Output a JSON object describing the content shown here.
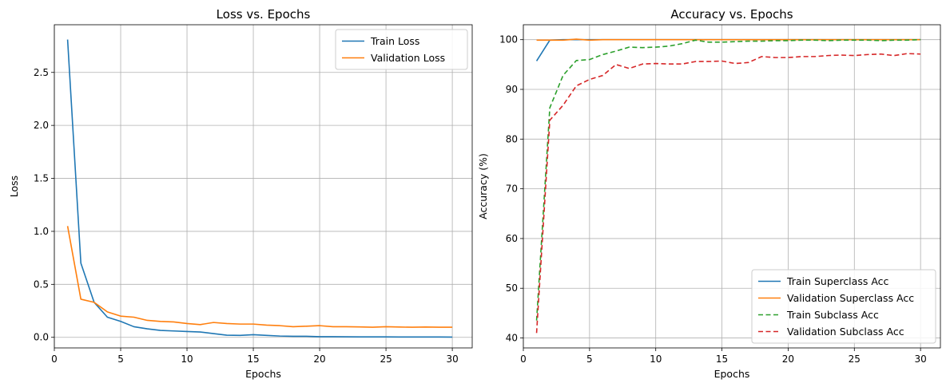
{
  "chart_data": [
    {
      "type": "line",
      "title": "Loss vs. Epochs",
      "xlabel": "Epochs",
      "ylabel": "Loss",
      "xlim": [
        0,
        31.5
      ],
      "ylim": [
        -0.1,
        2.95
      ],
      "xticks": [
        0,
        5,
        10,
        15,
        20,
        25,
        30
      ],
      "yticks": [
        0.0,
        0.5,
        1.0,
        1.5,
        2.0,
        2.5
      ],
      "ytick_labels": [
        "0.0",
        "0.5",
        "1.0",
        "1.5",
        "2.0",
        "2.5"
      ],
      "grid": true,
      "legend_position": "top-right",
      "x": [
        1,
        2,
        3,
        4,
        5,
        6,
        7,
        8,
        9,
        10,
        11,
        12,
        13,
        14,
        15,
        16,
        17,
        18,
        19,
        20,
        21,
        22,
        23,
        24,
        25,
        26,
        27,
        28,
        29,
        30
      ],
      "series": [
        {
          "name": "Train Loss",
          "color": "#1f77b4",
          "dash": "solid",
          "values": [
            2.81,
            0.7,
            0.33,
            0.19,
            0.15,
            0.1,
            0.08,
            0.065,
            0.06,
            0.055,
            0.05,
            0.035,
            0.02,
            0.018,
            0.025,
            0.018,
            0.012,
            0.01,
            0.01,
            0.006,
            0.006,
            0.005,
            0.004,
            0.004,
            0.004,
            0.003,
            0.003,
            0.003,
            0.003,
            0.002
          ]
        },
        {
          "name": "Validation Loss",
          "color": "#ff7f0e",
          "dash": "solid",
          "values": [
            1.05,
            0.36,
            0.33,
            0.24,
            0.2,
            0.19,
            0.16,
            0.15,
            0.145,
            0.13,
            0.12,
            0.14,
            0.13,
            0.125,
            0.125,
            0.115,
            0.11,
            0.1,
            0.105,
            0.11,
            0.1,
            0.1,
            0.098,
            0.095,
            0.1,
            0.097,
            0.095,
            0.097,
            0.095,
            0.095
          ]
        }
      ]
    },
    {
      "type": "line",
      "title": "Accuracy vs. Epochs",
      "xlabel": "Epochs",
      "ylabel": "Accuracy (%)",
      "xlim": [
        0,
        31.5
      ],
      "ylim": [
        38,
        103
      ],
      "xticks": [
        0,
        5,
        10,
        15,
        20,
        25,
        30
      ],
      "yticks": [
        40,
        50,
        60,
        70,
        80,
        90,
        100
      ],
      "ytick_labels": [
        "40",
        "50",
        "60",
        "70",
        "80",
        "90",
        "100"
      ],
      "grid": true,
      "legend_position": "bottom-right",
      "x": [
        1,
        2,
        3,
        4,
        5,
        6,
        7,
        8,
        9,
        10,
        11,
        12,
        13,
        14,
        15,
        16,
        17,
        18,
        19,
        20,
        21,
        22,
        23,
        24,
        25,
        26,
        27,
        28,
        29,
        30
      ],
      "series": [
        {
          "name": "Train Superclass Acc",
          "color": "#1f77b4",
          "dash": "solid",
          "values": [
            95.7,
            99.9,
            100,
            100,
            100,
            100,
            100,
            100,
            100,
            100,
            100,
            100,
            100,
            100,
            100,
            100,
            100,
            100,
            100,
            100,
            100,
            100,
            100,
            100,
            100,
            100,
            100,
            100,
            100,
            100
          ]
        },
        {
          "name": "Validation Superclass Acc",
          "color": "#ff7f0e",
          "dash": "solid",
          "values": [
            99.9,
            99.9,
            99.9,
            100.1,
            99.9,
            100,
            100,
            100,
            100,
            100,
            100,
            100,
            100,
            100,
            100,
            100,
            100,
            100,
            100,
            100,
            100,
            100,
            100,
            100,
            100,
            100,
            100,
            100,
            100,
            100
          ]
        },
        {
          "name": "Train Subclass Acc",
          "color": "#2ca02c",
          "dash": "dashed",
          "values": [
            43.5,
            86.3,
            92.8,
            95.8,
            96.0,
            97.0,
            97.7,
            98.5,
            98.4,
            98.5,
            98.7,
            99.2,
            99.9,
            99.5,
            99.5,
            99.6,
            99.7,
            99.7,
            99.8,
            99.8,
            99.9,
            99.9,
            99.8,
            99.9,
            99.9,
            99.9,
            99.8,
            99.9,
            99.9,
            100
          ]
        },
        {
          "name": "Validation Subclass Acc",
          "color": "#d62728",
          "dash": "dashed",
          "values": [
            41.0,
            83.8,
            86.8,
            90.7,
            92.0,
            92.8,
            95.0,
            94.2,
            95.1,
            95.2,
            95.1,
            95.1,
            95.6,
            95.6,
            95.7,
            95.2,
            95.4,
            96.6,
            96.4,
            96.4,
            96.6,
            96.6,
            96.8,
            96.9,
            96.8,
            97.0,
            97.1,
            96.8,
            97.2,
            97.1
          ]
        }
      ]
    }
  ]
}
